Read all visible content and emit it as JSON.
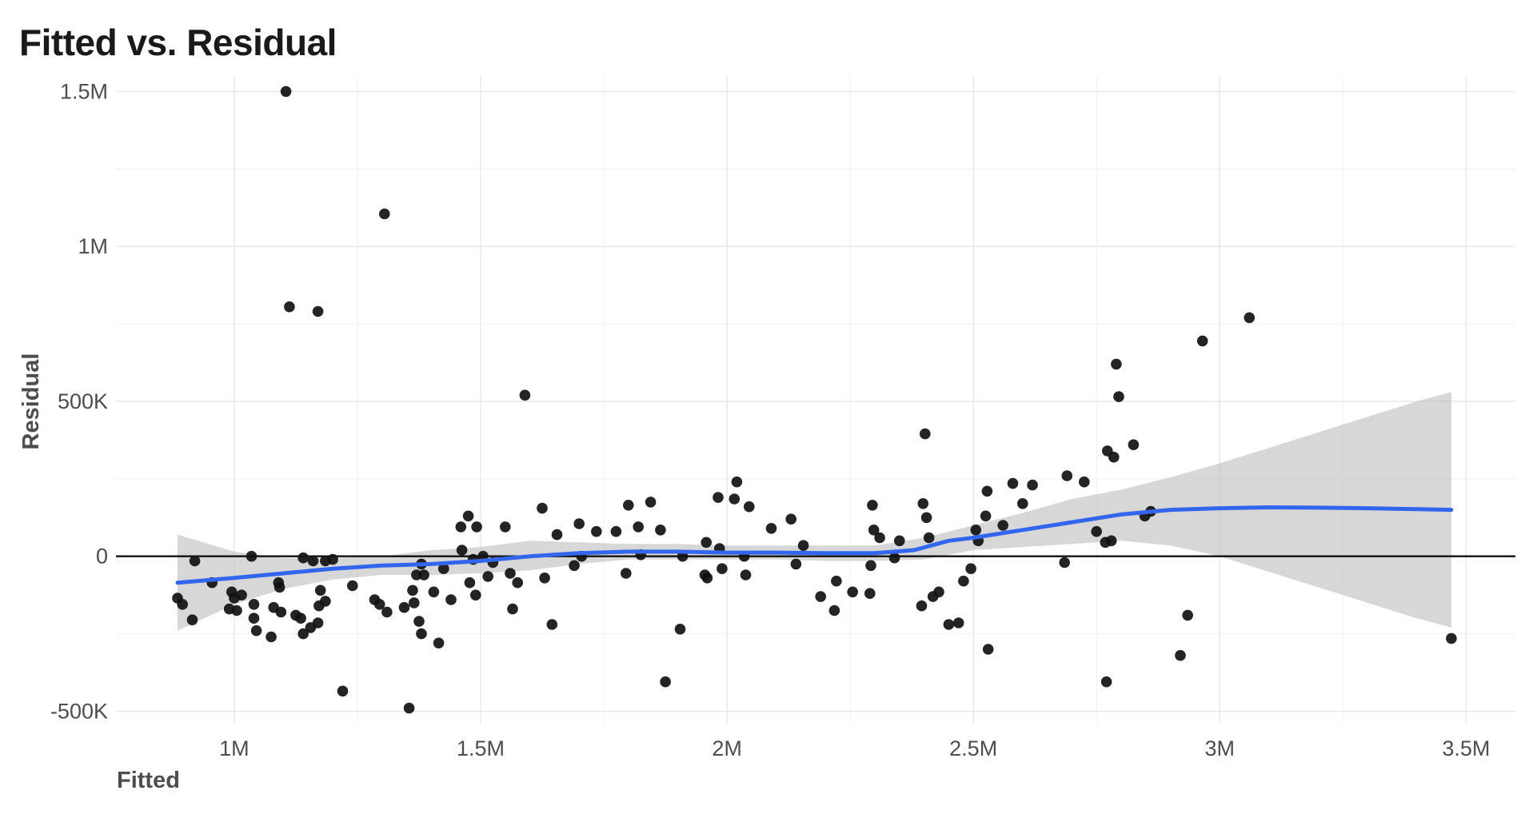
{
  "chart_data": {
    "type": "scatter",
    "title": "Fitted vs. Residual",
    "xlabel": "Fitted",
    "ylabel": "Residual",
    "xlim": [
      760000,
      3600000
    ],
    "ylim": [
      -540000,
      1550000
    ],
    "x_ticks": [
      {
        "value": 1000000,
        "label": "1M"
      },
      {
        "value": 1500000,
        "label": "1.5M"
      },
      {
        "value": 2000000,
        "label": "2M"
      },
      {
        "value": 2500000,
        "label": "2.5M"
      },
      {
        "value": 3000000,
        "label": "3M"
      },
      {
        "value": 3500000,
        "label": "3.5M"
      }
    ],
    "y_ticks": [
      {
        "value": -500000,
        "label": "-500K"
      },
      {
        "value": 0,
        "label": "0"
      },
      {
        "value": 500000,
        "label": "500K"
      },
      {
        "value": 1000000,
        "label": "1M"
      },
      {
        "value": 1500000,
        "label": "1.5M"
      }
    ],
    "grid": true,
    "reference_line": 0,
    "colors": {
      "points": "#111111",
      "smooth": "#3366ee",
      "band": "#bfbfbf",
      "reference": "#111111"
    },
    "points": [
      [
        1105000,
        1500000
      ],
      [
        1305000,
        1105000
      ],
      [
        1112000,
        805000
      ],
      [
        1170000,
        790000
      ],
      [
        1590000,
        520000
      ],
      [
        885000,
        -135000
      ],
      [
        895000,
        -155000
      ],
      [
        915000,
        -205000
      ],
      [
        920000,
        -15000
      ],
      [
        955000,
        -85000
      ],
      [
        990000,
        -170000
      ],
      [
        995000,
        -115000
      ],
      [
        1000000,
        -135000
      ],
      [
        1005000,
        -175000
      ],
      [
        1015000,
        -125000
      ],
      [
        1035000,
        0
      ],
      [
        1040000,
        -155000
      ],
      [
        1040000,
        -200000
      ],
      [
        1045000,
        -240000
      ],
      [
        1075000,
        -260000
      ],
      [
        1080000,
        -165000
      ],
      [
        1090000,
        -85000
      ],
      [
        1092000,
        -100000
      ],
      [
        1095000,
        -180000
      ],
      [
        1125000,
        -190000
      ],
      [
        1135000,
        -200000
      ],
      [
        1140000,
        -5000
      ],
      [
        1140000,
        -250000
      ],
      [
        1155000,
        -230000
      ],
      [
        1160000,
        -15000
      ],
      [
        1170000,
        -215000
      ],
      [
        1172000,
        -160000
      ],
      [
        1175000,
        -110000
      ],
      [
        1185000,
        -145000
      ],
      [
        1185000,
        -15000
      ],
      [
        1200000,
        -10000
      ],
      [
        1220000,
        -435000
      ],
      [
        1240000,
        -95000
      ],
      [
        1285000,
        -140000
      ],
      [
        1295000,
        -155000
      ],
      [
        1310000,
        -180000
      ],
      [
        1345000,
        -165000
      ],
      [
        1355000,
        -490000
      ],
      [
        1362000,
        -110000
      ],
      [
        1365000,
        -150000
      ],
      [
        1370000,
        -60000
      ],
      [
        1375000,
        -210000
      ],
      [
        1380000,
        -250000
      ],
      [
        1380000,
        -25000
      ],
      [
        1385000,
        -60000
      ],
      [
        1405000,
        -115000
      ],
      [
        1415000,
        -280000
      ],
      [
        1425000,
        -40000
      ],
      [
        1440000,
        -140000
      ],
      [
        1460000,
        95000
      ],
      [
        1462000,
        20000
      ],
      [
        1475000,
        130000
      ],
      [
        1478000,
        -85000
      ],
      [
        1485000,
        -10000
      ],
      [
        1490000,
        -125000
      ],
      [
        1492000,
        95000
      ],
      [
        1505000,
        0
      ],
      [
        1515000,
        -65000
      ],
      [
        1525000,
        -20000
      ],
      [
        1550000,
        95000
      ],
      [
        1560000,
        -55000
      ],
      [
        1565000,
        -170000
      ],
      [
        1575000,
        -85000
      ],
      [
        1625000,
        155000
      ],
      [
        1630000,
        -70000
      ],
      [
        1645000,
        -220000
      ],
      [
        1655000,
        70000
      ],
      [
        1690000,
        -30000
      ],
      [
        1700000,
        105000
      ],
      [
        1705000,
        0
      ],
      [
        1735000,
        80000
      ],
      [
        1775000,
        80000
      ],
      [
        1795000,
        -55000
      ],
      [
        1800000,
        165000
      ],
      [
        1820000,
        95000
      ],
      [
        1825000,
        5000
      ],
      [
        1845000,
        175000
      ],
      [
        1865000,
        85000
      ],
      [
        1875000,
        -405000
      ],
      [
        1905000,
        -235000
      ],
      [
        1910000,
        0
      ],
      [
        1955000,
        -60000
      ],
      [
        1958000,
        45000
      ],
      [
        1960000,
        -70000
      ],
      [
        1982000,
        190000
      ],
      [
        1985000,
        25000
      ],
      [
        1990000,
        -40000
      ],
      [
        2015000,
        185000
      ],
      [
        2020000,
        240000
      ],
      [
        2035000,
        0
      ],
      [
        2038000,
        -60000
      ],
      [
        2045000,
        160000
      ],
      [
        2090000,
        90000
      ],
      [
        2130000,
        120000
      ],
      [
        2140000,
        -25000
      ],
      [
        2155000,
        35000
      ],
      [
        2190000,
        -130000
      ],
      [
        2218000,
        -175000
      ],
      [
        2222000,
        -80000
      ],
      [
        2255000,
        -115000
      ],
      [
        2290000,
        -120000
      ],
      [
        2292000,
        -30000
      ],
      [
        2295000,
        165000
      ],
      [
        2298000,
        85000
      ],
      [
        2310000,
        60000
      ],
      [
        2340000,
        -5000
      ],
      [
        2350000,
        50000
      ],
      [
        2395000,
        -160000
      ],
      [
        2398000,
        170000
      ],
      [
        2402000,
        395000
      ],
      [
        2405000,
        125000
      ],
      [
        2410000,
        60000
      ],
      [
        2418000,
        -130000
      ],
      [
        2430000,
        -115000
      ],
      [
        2450000,
        -220000
      ],
      [
        2470000,
        -215000
      ],
      [
        2480000,
        -80000
      ],
      [
        2495000,
        -40000
      ],
      [
        2505000,
        85000
      ],
      [
        2510000,
        50000
      ],
      [
        2525000,
        130000
      ],
      [
        2528000,
        210000
      ],
      [
        2530000,
        -300000
      ],
      [
        2560000,
        100000
      ],
      [
        2580000,
        235000
      ],
      [
        2600000,
        170000
      ],
      [
        2620000,
        230000
      ],
      [
        2685000,
        -20000
      ],
      [
        2690000,
        260000
      ],
      [
        2725000,
        240000
      ],
      [
        2750000,
        80000
      ],
      [
        2768000,
        45000
      ],
      [
        2770000,
        -405000
      ],
      [
        2772000,
        340000
      ],
      [
        2780000,
        50000
      ],
      [
        2785000,
        320000
      ],
      [
        2790000,
        620000
      ],
      [
        2795000,
        515000
      ],
      [
        2825000,
        360000
      ],
      [
        2848000,
        130000
      ],
      [
        2860000,
        145000
      ],
      [
        2920000,
        -320000
      ],
      [
        2935000,
        -190000
      ],
      [
        2965000,
        695000
      ],
      [
        3060000,
        770000
      ],
      [
        3470000,
        -265000
      ]
    ],
    "smooth_line": [
      [
        885000,
        -85000
      ],
      [
        1000000,
        -70000
      ],
      [
        1100000,
        -55000
      ],
      [
        1200000,
        -40000
      ],
      [
        1300000,
        -30000
      ],
      [
        1400000,
        -25000
      ],
      [
        1500000,
        -15000
      ],
      [
        1600000,
        0
      ],
      [
        1700000,
        10000
      ],
      [
        1800000,
        15000
      ],
      [
        1900000,
        15000
      ],
      [
        2000000,
        12000
      ],
      [
        2100000,
        12000
      ],
      [
        2200000,
        10000
      ],
      [
        2300000,
        10000
      ],
      [
        2380000,
        20000
      ],
      [
        2450000,
        50000
      ],
      [
        2500000,
        60000
      ],
      [
        2600000,
        85000
      ],
      [
        2700000,
        110000
      ],
      [
        2800000,
        135000
      ],
      [
        2900000,
        150000
      ],
      [
        3000000,
        155000
      ],
      [
        3100000,
        158000
      ],
      [
        3200000,
        157000
      ],
      [
        3300000,
        155000
      ],
      [
        3400000,
        152000
      ],
      [
        3470000,
        150000
      ]
    ],
    "confidence_band": {
      "x": [
        885000,
        1000000,
        1100000,
        1200000,
        1300000,
        1400000,
        1500000,
        1600000,
        1700000,
        1800000,
        1900000,
        2000000,
        2100000,
        2200000,
        2300000,
        2400000,
        2500000,
        2600000,
        2700000,
        2800000,
        2900000,
        3000000,
        3100000,
        3200000,
        3300000,
        3400000,
        3470000
      ],
      "upper": [
        70000,
        15000,
        -5000,
        -5000,
        0,
        20000,
        30000,
        50000,
        45000,
        40000,
        40000,
        35000,
        35000,
        35000,
        35000,
        60000,
        100000,
        140000,
        185000,
        215000,
        255000,
        300000,
        350000,
        400000,
        450000,
        500000,
        530000
      ],
      "lower": [
        -240000,
        -155000,
        -105000,
        -75000,
        -60000,
        -60000,
        -55000,
        -45000,
        -25000,
        -10000,
        -10000,
        -10000,
        -10000,
        -15000,
        -15000,
        -10000,
        20000,
        30000,
        40000,
        50000,
        35000,
        0,
        -50000,
        -100000,
        -150000,
        -200000,
        -230000
      ]
    }
  }
}
